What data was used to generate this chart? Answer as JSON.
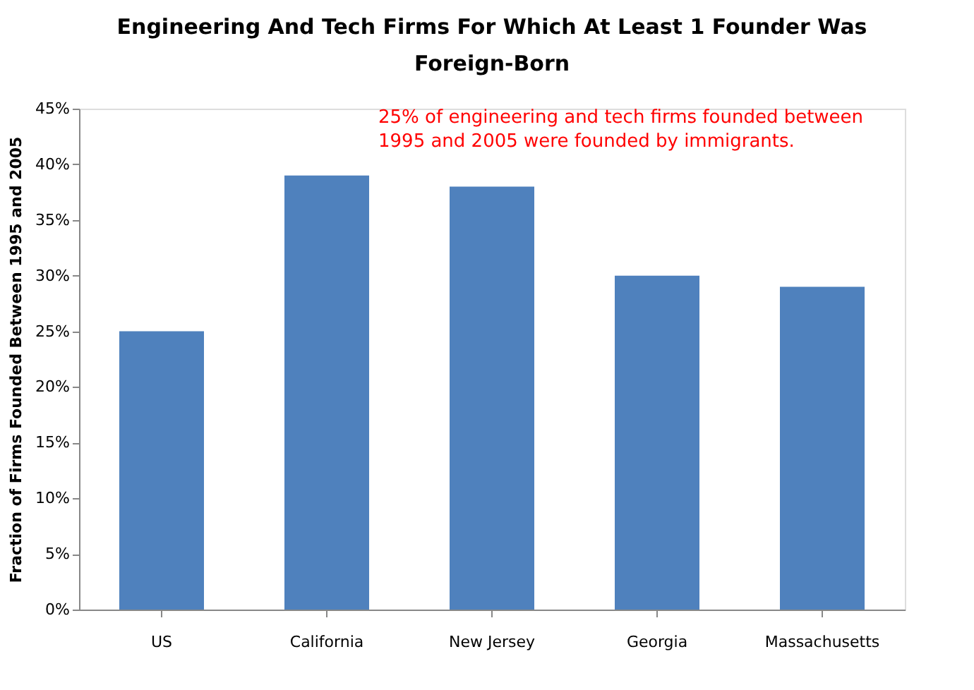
{
  "chart_data": {
    "type": "bar",
    "title": "Engineering And Tech Firms For Which At Least 1 Founder Was Foreign-Born",
    "ylabel": "Fraction of Firms Founded Between 1995 and 2005",
    "categories": [
      "US",
      "California",
      "New Jersey",
      "Georgia",
      "Massachusetts"
    ],
    "values": [
      25,
      39,
      38,
      30,
      29
    ],
    "color": "#4f81bd",
    "ylim": [
      0,
      45
    ],
    "yticks": [
      {
        "value": 0,
        "label": "0%"
      },
      {
        "value": 5,
        "label": "5%"
      },
      {
        "value": 10,
        "label": "10%"
      },
      {
        "value": 15,
        "label": "15%"
      },
      {
        "value": 20,
        "label": "20%"
      },
      {
        "value": 25,
        "label": "25%"
      },
      {
        "value": 30,
        "label": "30%"
      },
      {
        "value": 35,
        "label": "35%"
      },
      {
        "value": 40,
        "label": "40%"
      },
      {
        "value": 45,
        "label": "45%"
      }
    ],
    "grid": false,
    "annotations": [
      "25% of engineering and tech firms founded between 1995 and 2005 were founded by immigrants."
    ]
  }
}
